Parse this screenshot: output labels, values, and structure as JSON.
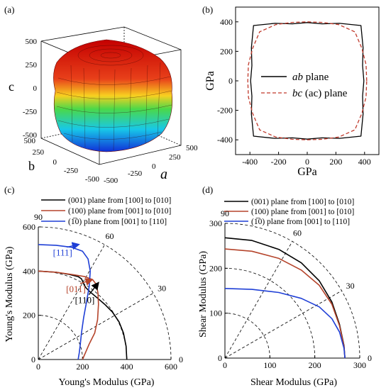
{
  "panels": {
    "a": {
      "label": "(a)",
      "axis_labels": {
        "z": "c",
        "x": "a",
        "y": "b"
      },
      "z_ticks": [
        "500",
        "250",
        "0",
        "-250",
        "-500"
      ],
      "x_ticks": [
        "500",
        "250",
        "0",
        "-250",
        "-500"
      ],
      "y_ticks": [
        "500",
        "250",
        "0",
        "-250",
        "-500"
      ]
    },
    "b": {
      "label": "(b)"
    },
    "c": {
      "label": "(c)"
    },
    "d": {
      "label": "(d)"
    }
  },
  "chart_data": [
    {
      "panel": "b",
      "type": "line",
      "xlabel": "GPa",
      "ylabel": "GPa",
      "xlim": [
        -500,
        500
      ],
      "ylim": [
        -500,
        500
      ],
      "x_ticks": [
        -400,
        -200,
        0,
        200,
        400
      ],
      "y_ticks": [
        -400,
        -200,
        0,
        200,
        400
      ],
      "x_tick_labels": [
        "-400",
        "-200",
        "0",
        "200",
        "400"
      ],
      "y_tick_labels": [
        "-400",
        "-200",
        "0",
        "200",
        "400"
      ],
      "legend_position": "center",
      "series": [
        {
          "name": "ab plane",
          "name_italic": "ab",
          "name_rest": " plane",
          "style": "solid",
          "color": "#000000",
          "polar_theta_deg": [
            0,
            15,
            30,
            45,
            60,
            75,
            90,
            105,
            120,
            135,
            150,
            165,
            180,
            195,
            210,
            225,
            240,
            255,
            270,
            285,
            300,
            315,
            330,
            345
          ],
          "polar_r": [
            395,
            400,
            450,
            530,
            450,
            400,
            395,
            400,
            450,
            530,
            450,
            400,
            395,
            400,
            450,
            530,
            450,
            400,
            395,
            400,
            450,
            530,
            450,
            400
          ]
        },
        {
          "name": "bc (ac) plane",
          "name_italic": "bc",
          "name_rest": " (ac) plane",
          "style": "dashed",
          "color": "#c0392b",
          "polar_theta_deg": [
            0,
            15,
            30,
            45,
            60,
            75,
            90,
            105,
            120,
            135,
            150,
            165,
            180,
            195,
            210,
            225,
            240,
            255,
            270,
            285,
            300,
            315,
            330,
            345
          ],
          "polar_r": [
            415,
            425,
            440,
            470,
            440,
            410,
            400,
            410,
            440,
            470,
            440,
            425,
            415,
            425,
            440,
            470,
            440,
            410,
            400,
            410,
            440,
            470,
            440,
            425
          ]
        }
      ]
    },
    {
      "panel": "c",
      "type": "line",
      "polar": true,
      "xlabel": "Young's Modulus (GPa)",
      "ylabel": "Young's Modulus (GPa)",
      "xlim": [
        0,
        600
      ],
      "ylim": [
        0,
        600
      ],
      "x_ticks": [
        0,
        200,
        400,
        600
      ],
      "y_ticks": [
        0,
        200,
        400,
        600
      ],
      "x_tick_labels": [
        "0",
        "200",
        "400",
        "600"
      ],
      "y_tick_labels": [
        "0",
        "200",
        "400",
        "600"
      ],
      "rings": [
        200,
        400,
        600
      ],
      "angle_labels": [
        {
          "deg": 90,
          "text": "90"
        },
        {
          "deg": 60,
          "text": "60"
        },
        {
          "deg": 30,
          "text": "30"
        },
        {
          "deg": 0,
          "text": "0"
        }
      ],
      "legend_position": "top",
      "annotations": [
        {
          "text": "[111]",
          "color": "#1f3fd6",
          "x": 110,
          "y": 470,
          "arrow_to": [
            180,
            520
          ]
        },
        {
          "text": "[011]",
          "color": "#b5442b",
          "x": 170,
          "y": 305,
          "arrow_to": [
            240,
            360
          ]
        },
        {
          "text": "[110]",
          "color": "#000000",
          "x": 210,
          "y": 255,
          "arrow_to": [
            270,
            345
          ]
        }
      ],
      "series": [
        {
          "name": "(001) plane from [100] to [010]",
          "color": "#000000",
          "x": [
            400,
            397,
            385,
            365,
            335,
            300,
            265,
            235,
            215,
            205,
            200,
            195,
            180,
            140,
            80,
            0
          ],
          "y": [
            0,
            60,
            120,
            170,
            215,
            250,
            280,
            305,
            325,
            342,
            355,
            365,
            375,
            385,
            395,
            400
          ]
        },
        {
          "name": "(100) plane from [001] to [010]",
          "color": "#b5442b",
          "x": [
            0,
            80,
            150,
            210,
            245,
            262,
            270,
            272,
            268,
            255,
            230,
            200
          ],
          "y": [
            400,
            395,
            385,
            375,
            362,
            340,
            300,
            250,
            180,
            120,
            70,
            0
          ]
        },
        {
          "name": "(1̅0) plane from [001] to [110]",
          "color": "#1f3fd6",
          "x": [
            0,
            80,
            150,
            200,
            225,
            235,
            230,
            218,
            205,
            195,
            190,
            185,
            180
          ],
          "y": [
            520,
            517,
            508,
            490,
            455,
            400,
            330,
            260,
            190,
            120,
            70,
            30,
            0
          ]
        }
      ]
    },
    {
      "panel": "d",
      "type": "line",
      "polar": true,
      "xlabel": "Shear Modulus (GPa)",
      "ylabel": "Shear Modulus (GPa)",
      "xlim": [
        0,
        300
      ],
      "ylim": [
        0,
        300
      ],
      "x_ticks": [
        0,
        100,
        200,
        300
      ],
      "y_ticks": [
        0,
        100,
        200,
        300
      ],
      "x_tick_labels": [
        "0",
        "100",
        "200",
        "300"
      ],
      "y_tick_labels": [
        "0",
        "100",
        "200",
        "300"
      ],
      "rings": [
        100,
        200,
        300
      ],
      "angle_labels": [
        {
          "deg": 90,
          "text": "90"
        },
        {
          "deg": 60,
          "text": "60"
        },
        {
          "deg": 30,
          "text": "30"
        },
        {
          "deg": 0,
          "text": "0"
        }
      ],
      "legend_position": "top",
      "series": [
        {
          "name": "(001) plane from [100] to [010]",
          "color": "#000000",
          "x": [
            0,
            60,
            120,
            170,
            210,
            238,
            255,
            265,
            267
          ],
          "y": [
            268,
            262,
            242,
            212,
            172,
            125,
            75,
            28,
            0
          ]
        },
        {
          "name": "(100) plane from [001] to [010]",
          "color": "#b5442b",
          "x": [
            0,
            60,
            120,
            170,
            210,
            238,
            255,
            265,
            267
          ],
          "y": [
            243,
            238,
            222,
            196,
            162,
            120,
            72,
            26,
            0
          ]
        },
        {
          "name": "(1̅0) plane from [001] to [110]",
          "color": "#1f3fd6",
          "x": [
            0,
            60,
            120,
            170,
            210,
            238,
            255,
            265,
            267
          ],
          "y": [
            155,
            153,
            146,
            133,
            114,
            88,
            58,
            22,
            0
          ]
        }
      ]
    }
  ]
}
